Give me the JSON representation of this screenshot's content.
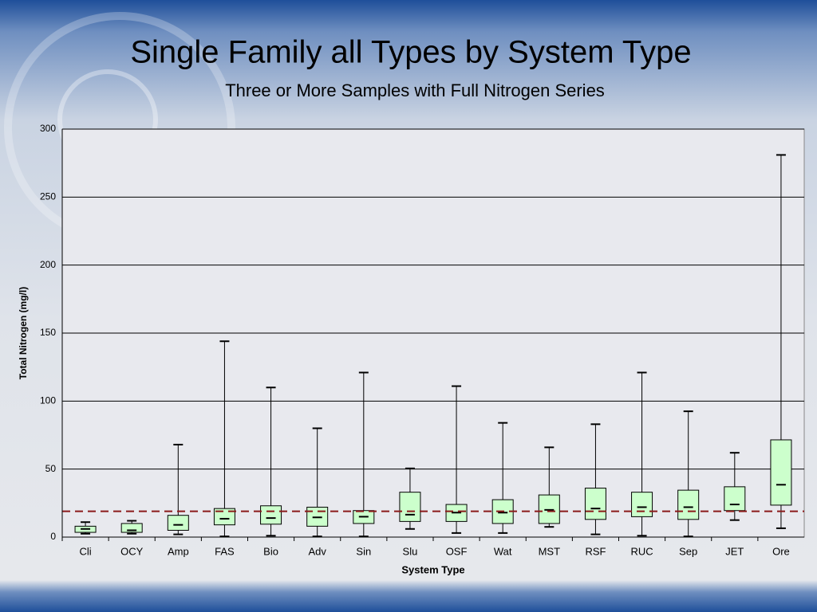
{
  "chart_data": {
    "type": "box",
    "title": "Single Family all Types by System Type",
    "subtitle": "Three or More Samples with Full Nitrogen Series",
    "x_label": "System Type",
    "y_label": "Total Nitrogen (mg/l)",
    "categories": [
      "Cli",
      "OCY",
      "Amp",
      "FAS",
      "Bio",
      "Adv",
      "Sin",
      "Slu",
      "OSF",
      "Wat",
      "MST",
      "RSF",
      "RUC",
      "Sep",
      "JET",
      "Ore"
    ],
    "min": [
      2.5,
      2.5,
      2,
      0.5,
      1,
      0.5,
      0.5,
      6,
      3,
      3,
      7.5,
      2,
      1,
      0.5,
      12.5,
      6.5
    ],
    "q1": [
      3.5,
      3.5,
      5,
      9,
      9.5,
      8,
      10,
      11.5,
      11.5,
      10,
      10,
      13,
      15,
      13,
      19.5,
      23.5
    ],
    "median": [
      6,
      5,
      9,
      13.5,
      14,
      14.5,
      15,
      16.5,
      18,
      18,
      20,
      21,
      22,
      22,
      24,
      38.5
    ],
    "q3": [
      8,
      10,
      16,
      21,
      23,
      22,
      19.5,
      33,
      24,
      27.5,
      31,
      36,
      33,
      34.5,
      37,
      71.5
    ],
    "max": [
      11,
      12,
      68,
      144,
      110,
      80,
      121,
      50.5,
      111,
      84,
      66,
      83,
      121,
      92.5,
      62,
      281
    ],
    "box_color": "#ccffcc",
    "reference_line": 19,
    "reference_color": "#8b1a1a",
    "ylim": [
      0,
      300
    ],
    "yticks": [
      0,
      50,
      100,
      150,
      200,
      250,
      300
    ],
    "grid": true
  }
}
